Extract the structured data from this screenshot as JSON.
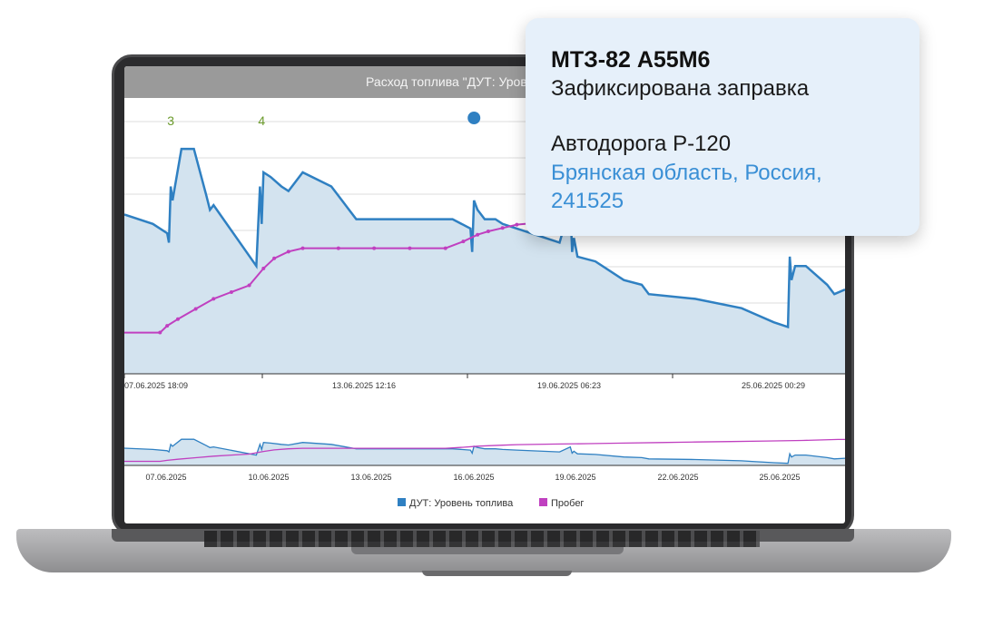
{
  "popup": {
    "vehicle": "МТЗ-82 А55М6",
    "event": "Зафиксирована заправка",
    "road": "Автодорога Р-120",
    "region": "Брянская область, Россия, 241525"
  },
  "colors": {
    "fuel": "#2f80c2",
    "fuel_fill": "#d3e3ef",
    "mileage": "#c040c0",
    "refuel_label": "#6a9a2a",
    "popup_bg": "#e6f0fa",
    "title_bg": "#9a9a9a"
  },
  "chart_data": {
    "type": "area",
    "title": "Расход топлива \"ДУТ: Уровень топлива\"",
    "main_x_ticks": [
      "07.06.2025 18:09",
      "13.06.2025 12:16",
      "19.06.2025 06:23",
      "25.06.2025 00:29"
    ],
    "nav_x_ticks": [
      "07.06.2025",
      "10.06.2025",
      "13.06.2025",
      "16.06.2025",
      "19.06.2025",
      "22.06.2025",
      "25.06.2025"
    ],
    "legend": [
      "ДУТ: Уровень топлива",
      "Пробег"
    ],
    "refuel_labels": [
      "3",
      "4"
    ],
    "grid": true,
    "series": [
      {
        "name": "ДУТ: Уровень топлива",
        "x": [
          6.0,
          6.8,
          7.2,
          7.25,
          7.3,
          7.35,
          7.6,
          7.95,
          8.3,
          8.4,
          8.5,
          9.7,
          9.8,
          9.85,
          9.9,
          10.1,
          10.4,
          10.6,
          11.0,
          11.8,
          12.5,
          13.5,
          14.5,
          15.2,
          15.7,
          15.75,
          15.8,
          15.9,
          16.1,
          16.4,
          16.6,
          17.0,
          18.2,
          18.5,
          18.55,
          18.6,
          18.7,
          19.2,
          20.0,
          20.5,
          20.7,
          22.0,
          23.3,
          23.6,
          24.2,
          24.6,
          24.65,
          24.7,
          24.8,
          25.1,
          25.7,
          25.9,
          26.2
        ],
        "y": [
          54,
          52,
          50,
          48,
          60,
          57,
          68,
          68,
          58,
          55,
          56,
          43,
          60,
          52,
          63,
          62,
          60,
          59,
          63,
          60,
          53,
          53,
          53,
          53,
          51,
          46,
          57,
          55,
          53,
          53,
          52,
          51,
          48,
          56,
          46,
          49,
          45,
          44,
          40,
          39,
          37,
          36,
          34,
          33,
          31,
          30,
          45,
          40,
          43,
          43,
          39,
          37,
          38
        ]
      },
      {
        "name": "Пробег",
        "x": [
          6.0,
          7.0,
          7.2,
          7.5,
          8.0,
          8.5,
          9.0,
          9.5,
          9.9,
          10.2,
          10.6,
          11.0,
          12.0,
          13.0,
          14.0,
          15.0,
          15.5,
          15.9,
          16.2,
          16.6,
          17.0,
          18.0,
          19.0,
          20.0,
          21.0,
          22.0,
          23.0,
          24.0,
          25.0,
          26.0,
          26.2
        ],
        "y": [
          40,
          40,
          42,
          44,
          47,
          50,
          52,
          54,
          59,
          62,
          64,
          65,
          65,
          65,
          65,
          65,
          67,
          69,
          70,
          71,
          72,
          73,
          74,
          75,
          76,
          77,
          78,
          79,
          80,
          82,
          82
        ]
      }
    ]
  }
}
